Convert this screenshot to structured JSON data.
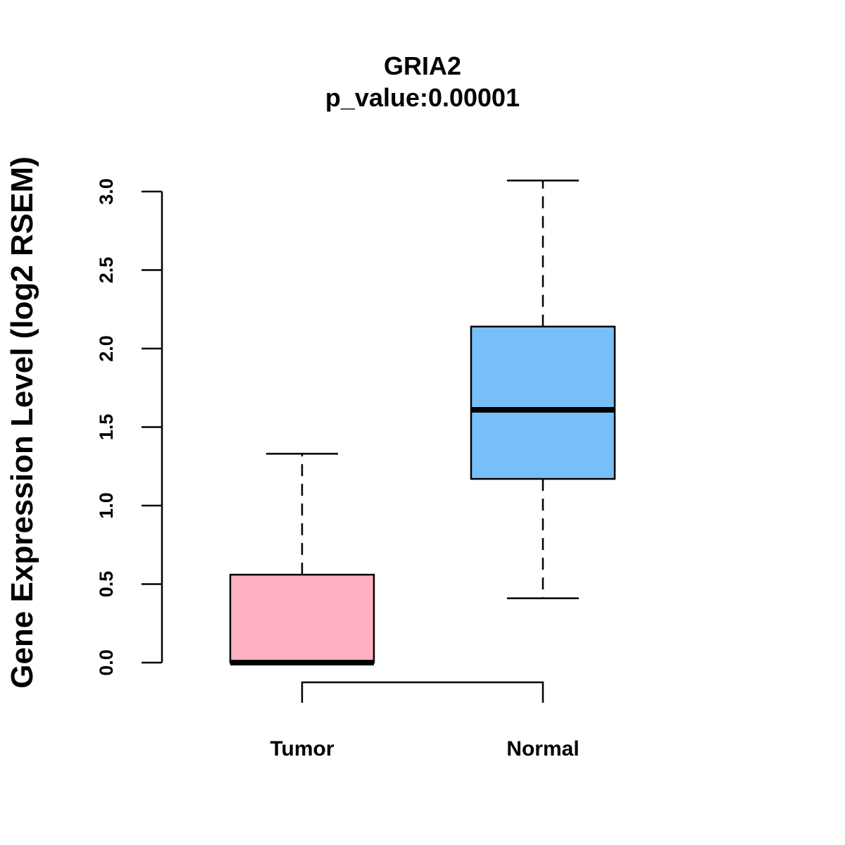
{
  "chart_data": {
    "type": "boxplot",
    "title": "GRIA2",
    "subtitle": "p_value:0.00001",
    "xlabel": "",
    "ylabel": "Gene Expression Level (log2 RSEM)",
    "ylim": [
      0,
      3.0
    ],
    "yticks": [
      0.0,
      0.5,
      1.0,
      1.5,
      2.0,
      2.5,
      3.0
    ],
    "ytick_labels": [
      "0.0",
      "0.5",
      "1.0",
      "1.5",
      "2.0",
      "2.5",
      "3.0"
    ],
    "grid": false,
    "legend": "none",
    "categories": [
      "Tumor",
      "Normal"
    ],
    "boxes": [
      {
        "category": "Tumor",
        "whisker_low": 0.0,
        "q1": 0.0,
        "median": 0.0,
        "q3": 0.56,
        "whisker_high": 1.33,
        "color": "#FFB1C1"
      },
      {
        "category": "Normal",
        "whisker_low": 0.41,
        "q1": 1.17,
        "median": 1.61,
        "q3": 2.14,
        "whisker_high": 3.07,
        "color": "#77C0F7"
      }
    ],
    "comparison_bracket": {
      "from": "Tumor",
      "to": "Normal"
    }
  }
}
